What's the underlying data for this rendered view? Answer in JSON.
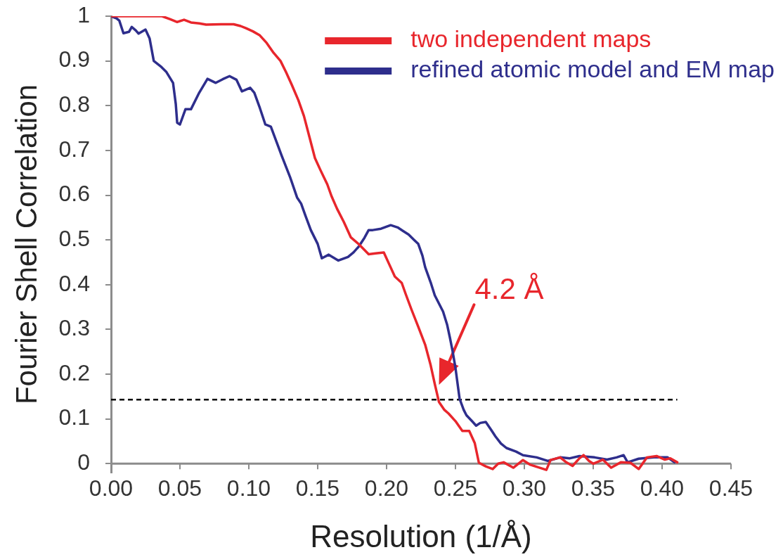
{
  "chart_data": {
    "type": "line",
    "xlabel": "Resolution (1/Å)",
    "ylabel": "Fourier Shell Correlation",
    "xlim": [
      0,
      0.45
    ],
    "xticks": [
      {
        "value": 0,
        "label": "0.00"
      },
      {
        "value": 0.05,
        "label": "0.05"
      },
      {
        "value": 0.1,
        "label": "0.10"
      },
      {
        "value": 0.15,
        "label": "0.15"
      },
      {
        "value": 0.2,
        "label": "0.20"
      },
      {
        "value": 0.25,
        "label": "0.25"
      },
      {
        "value": 0.3,
        "label": "0.30"
      },
      {
        "value": 0.35,
        "label": "0.35"
      },
      {
        "value": 0.4,
        "label": "0.40"
      },
      {
        "value": 0.45,
        "label": "0.45"
      }
    ],
    "ylim": [
      -0.02,
      1
    ],
    "yticks": [
      0,
      0.1,
      0.2,
      0.3,
      0.4,
      0.5,
      0.6,
      0.7,
      0.8,
      0.9,
      1
    ],
    "legend": "top right",
    "line_style": "solid",
    "series": [
      {
        "name": "two independent maps",
        "color": "#e8262c",
        "x": [
          0,
          0.02,
          0.037,
          0.043,
          0.048,
          0.053,
          0.058,
          0.064,
          0.069,
          0.08,
          0.089,
          0.094,
          0.098,
          0.103,
          0.108,
          0.113,
          0.118,
          0.123,
          0.127,
          0.131,
          0.136,
          0.14,
          0.144,
          0.148,
          0.152,
          0.157,
          0.16,
          0.164,
          0.169,
          0.174,
          0.18,
          0.187,
          0.192,
          0.198,
          0.202,
          0.206,
          0.211,
          0.214,
          0.218,
          0.223,
          0.228,
          0.232,
          0.235,
          0.238,
          0.242,
          0.245,
          0.25,
          0.255,
          0.26,
          0.264,
          0.267,
          0.272,
          0.277,
          0.281,
          0.285,
          0.292,
          0.299,
          0.304,
          0.308,
          0.316,
          0.319,
          0.326,
          0.33,
          0.335,
          0.34,
          0.343,
          0.347,
          0.35,
          0.357,
          0.363,
          0.37,
          0.377,
          0.383,
          0.389,
          0.396,
          0.402,
          0.406,
          0.411
        ],
        "values": [
          1,
          1,
          1,
          0.993,
          0.987,
          0.992,
          0.986,
          0.984,
          0.981,
          0.982,
          0.982,
          0.978,
          0.973,
          0.966,
          0.957,
          0.94,
          0.918,
          0.9,
          0.875,
          0.848,
          0.812,
          0.777,
          0.73,
          0.683,
          0.656,
          0.624,
          0.598,
          0.57,
          0.54,
          0.506,
          0.49,
          0.468,
          0.47,
          0.472,
          0.445,
          0.418,
          0.404,
          0.378,
          0.345,
          0.306,
          0.266,
          0.22,
          0.178,
          0.138,
          0.12,
          0.112,
          0.095,
          0.073,
          0.073,
          0.046,
          0.002,
          -0.006,
          -0.012,
          0,
          0.003,
          -0.009,
          0.008,
          -0.002,
          -0.006,
          -0.014,
          0.008,
          0.014,
          0.004,
          -0.005,
          0.012,
          0.019,
          0.006,
          0,
          0.009,
          -0.009,
          0.003,
          0.002,
          -0.012,
          0.014,
          0.017,
          0.009,
          0.012,
          0.003
        ]
      },
      {
        "name": "refined atomic model and EM map",
        "color": "#2e2e8c",
        "x": [
          0,
          0.004,
          0.006,
          0.009,
          0.013,
          0.015,
          0.018,
          0.02,
          0.025,
          0.028,
          0.031,
          0.036,
          0.04,
          0.045,
          0.047,
          0.048,
          0.05,
          0.054,
          0.058,
          0.064,
          0.07,
          0.076,
          0.081,
          0.086,
          0.091,
          0.095,
          0.098,
          0.101,
          0.104,
          0.108,
          0.112,
          0.116,
          0.12,
          0.124,
          0.13,
          0.135,
          0.138,
          0.141,
          0.145,
          0.15,
          0.153,
          0.158,
          0.165,
          0.172,
          0.176,
          0.18,
          0.184,
          0.187,
          0.19,
          0.196,
          0.203,
          0.208,
          0.212,
          0.216,
          0.22,
          0.223,
          0.226,
          0.228,
          0.232,
          0.235,
          0.241,
          0.244,
          0.246,
          0.248,
          0.25,
          0.253,
          0.256,
          0.258,
          0.262,
          0.265,
          0.268,
          0.272,
          0.276,
          0.279,
          0.283,
          0.287,
          0.294,
          0.299,
          0.309,
          0.317,
          0.326,
          0.333,
          0.34,
          0.351,
          0.36,
          0.367,
          0.372,
          0.375,
          0.383,
          0.394,
          0.404,
          0.409
        ],
        "values": [
          1,
          0.995,
          0.99,
          0.962,
          0.965,
          0.976,
          0.968,
          0.961,
          0.97,
          0.95,
          0.9,
          0.888,
          0.876,
          0.851,
          0.803,
          0.762,
          0.758,
          0.792,
          0.792,
          0.829,
          0.86,
          0.851,
          0.859,
          0.866,
          0.858,
          0.832,
          0.836,
          0.84,
          0.829,
          0.795,
          0.758,
          0.753,
          0.72,
          0.687,
          0.64,
          0.595,
          0.581,
          0.555,
          0.522,
          0.491,
          0.459,
          0.467,
          0.454,
          0.462,
          0.472,
          0.486,
          0.505,
          0.522,
          0.522,
          0.525,
          0.533,
          0.528,
          0.52,
          0.512,
          0.5,
          0.491,
          0.465,
          0.439,
          0.405,
          0.376,
          0.34,
          0.31,
          0.281,
          0.25,
          0.214,
          0.145,
          0.12,
          0.108,
          0.095,
          0.085,
          0.091,
          0.093,
          0.075,
          0.061,
          0.045,
          0.035,
          0.027,
          0.019,
          0.014,
          0.006,
          0.014,
          0.012,
          0.017,
          0.014,
          0.009,
          0.014,
          0.019,
          0.003,
          0.011,
          0.014,
          0.014,
          0.003
        ]
      }
    ],
    "ref_lines": [
      {
        "axis": "y",
        "value": 0.143,
        "line_style": "dashed",
        "color": "#000000"
      }
    ],
    "annotations": [
      {
        "text": "4.2 Å",
        "x": 0.238,
        "y": 0.176
      }
    ]
  }
}
